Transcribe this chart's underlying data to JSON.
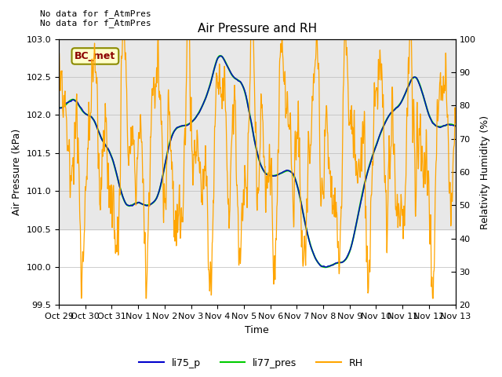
{
  "title": "Air Pressure and RH",
  "xlabel": "Time",
  "ylabel_left": "Air Pressure (kPa)",
  "ylabel_right": "Relativity Humidity (%)",
  "ylim_left": [
    99.5,
    103.0
  ],
  "ylim_right": [
    20,
    100
  ],
  "yticks_left": [
    99.5,
    100.0,
    100.5,
    101.0,
    101.5,
    102.0,
    102.5,
    103.0
  ],
  "yticks_right": [
    20,
    30,
    40,
    50,
    60,
    70,
    80,
    90,
    100
  ],
  "bg_color": "#ffffff",
  "band_color": "#e8e8e8",
  "top_text": "No data for f_AtmPres\nNo data for f_AtmPres",
  "bc_met_label": "BC_met",
  "legend_labels": [
    "li75_p",
    "li77_pres",
    "RH"
  ],
  "legend_colors": [
    "#0000cc",
    "#00cc00",
    "#ffa500"
  ],
  "line_li75_color": "#0000cc",
  "line_li77_color": "#00cc00",
  "line_rh_color": "#ffa500",
  "xtick_labels": [
    "Oct 29",
    "Oct 30",
    "Oct 31",
    "Nov 1",
    "Nov 2",
    "Nov 3",
    "Nov 4",
    "Nov 5",
    "Nov 6",
    "Nov 7",
    "Nov 8",
    "Nov 9",
    "Nov 10",
    "Nov 11",
    "Nov 12",
    "Nov 13"
  ],
  "n_days": 15
}
